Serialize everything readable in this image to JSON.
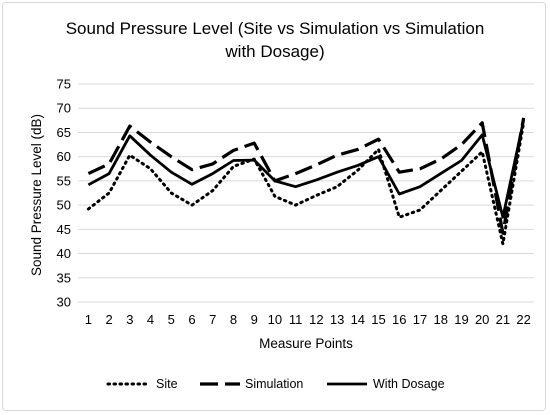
{
  "chart_data": {
    "type": "line",
    "title_lines": [
      "Sound Pressure Level (Site vs Simulation vs Simulation",
      "with Dosage)"
    ],
    "xlabel": "Measure Points",
    "ylabel": "Sound Pressure Level (dB)",
    "ylim": [
      30,
      75
    ],
    "yticks": [
      "30",
      "35",
      "40",
      "45",
      "50",
      "55",
      "60",
      "65",
      "70",
      "75"
    ],
    "grid": true,
    "legend_position": "bottom",
    "categories": [
      "1",
      "2",
      "3",
      "4",
      "5",
      "6",
      "7",
      "8",
      "9",
      "10",
      "11",
      "12",
      "13",
      "14",
      "15",
      "16",
      "17",
      "18",
      "19",
      "20",
      "21",
      "22"
    ],
    "series": [
      {
        "name": "Site",
        "style": "dotted",
        "color": "#000000",
        "values": [
          49.2,
          52.5,
          60.3,
          57.5,
          52.5,
          50.0,
          53.0,
          58.0,
          59.5,
          51.8,
          50.0,
          52.0,
          53.8,
          57.2,
          61.5,
          47.5,
          49.0,
          53.0,
          57.0,
          61.0,
          42.0,
          67.0
        ]
      },
      {
        "name": "Simulation",
        "style": "dashed",
        "color": "#000000",
        "values": [
          56.5,
          58.5,
          66.3,
          63.0,
          60.0,
          57.3,
          58.5,
          61.3,
          62.8,
          55.0,
          56.5,
          58.3,
          60.3,
          61.5,
          63.6,
          56.8,
          57.5,
          59.5,
          62.5,
          67.0,
          44.2,
          68.0
        ]
      },
      {
        "name": "With Dosage",
        "style": "solid",
        "color": "#000000",
        "values": [
          54.2,
          56.5,
          64.3,
          60.3,
          56.8,
          54.3,
          56.5,
          59.2,
          59.3,
          55.0,
          53.8,
          55.2,
          56.8,
          58.2,
          60.0,
          52.3,
          53.8,
          56.5,
          59.2,
          64.5,
          47.5,
          67.5
        ]
      }
    ]
  }
}
